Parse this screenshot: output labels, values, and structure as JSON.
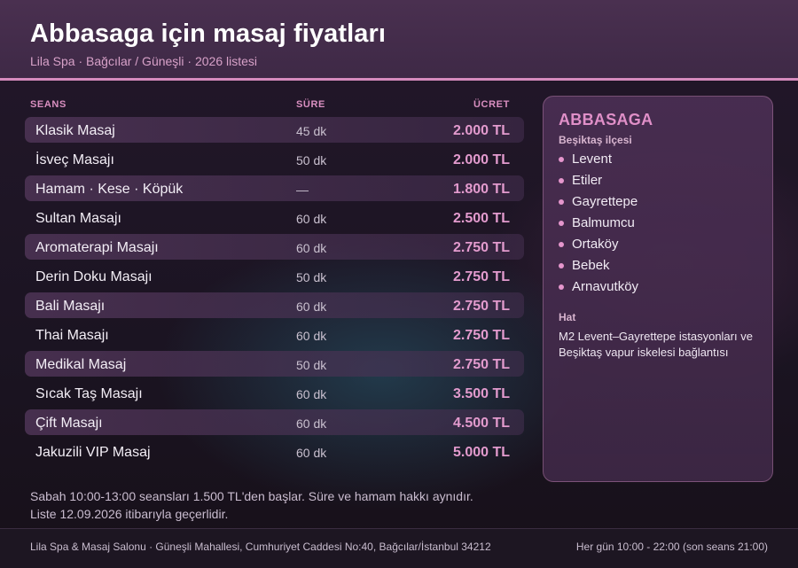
{
  "header": {
    "title": "Abbasaga için masaj fiyatları",
    "subtitle": "Lila Spa · Bağcılar / Güneşli · 2026 listesi"
  },
  "table": {
    "columns": {
      "session": "SEANS",
      "duration": "SÜRE",
      "price": "ÜCRET"
    },
    "rows": [
      {
        "name": "Klasik Masaj",
        "duration": "45 dk",
        "price": "2.000 TL"
      },
      {
        "name": "İsveç Masajı",
        "duration": "50 dk",
        "price": "2.000 TL"
      },
      {
        "name": "Hamam · Kese · Köpük",
        "duration": "—",
        "price": "1.800 TL"
      },
      {
        "name": "Sultan Masajı",
        "duration": "60 dk",
        "price": "2.500 TL"
      },
      {
        "name": "Aromaterapi Masajı",
        "duration": "60 dk",
        "price": "2.750 TL"
      },
      {
        "name": "Derin Doku Masajı",
        "duration": "50 dk",
        "price": "2.750 TL"
      },
      {
        "name": "Bali Masajı",
        "duration": "60 dk",
        "price": "2.750 TL"
      },
      {
        "name": "Thai Masajı",
        "duration": "60 dk",
        "price": "2.750 TL"
      },
      {
        "name": "Medikal Masaj",
        "duration": "50 dk",
        "price": "2.750 TL"
      },
      {
        "name": "Sıcak Taş Masajı",
        "duration": "60 dk",
        "price": "3.500 TL"
      },
      {
        "name": "Çift Masajı",
        "duration": "60 dk",
        "price": "4.500 TL"
      },
      {
        "name": "Jakuzili VIP Masaj",
        "duration": "60 dk",
        "price": "5.000 TL"
      }
    ]
  },
  "notes": [
    "Sabah 10:00-13:00 seansları 1.500 TL'den başlar. Süre ve hamam hakkı aynıdır.",
    "Liste 12.09.2026 itibarıyla geçerlidir."
  ],
  "card": {
    "title": "ABBASAGA",
    "subtitle": "Beşiktaş ilçesi",
    "neighborhoods": [
      "Levent",
      "Etiler",
      "Gayrettepe",
      "Balmumcu",
      "Ortaköy",
      "Bebek",
      "Arnavutköy"
    ],
    "transit_label": "Hat",
    "transit_text": "M2 Levent–Gayrettepe istasyonları ve Beşiktaş vapur iskelesi bağlantısı"
  },
  "footer": {
    "address": "Lila Spa & Masaj Salonu · Güneşli Mahallesi, Cumhuriyet Caddesi No:40, Bağcılar/İstanbul 34212",
    "hours": "Her gün 10:00 - 22:00 (son seans 21:00)"
  },
  "colors": {
    "accent": "#d58bbd",
    "price": "#e39bce",
    "header": "#4a3050"
  }
}
